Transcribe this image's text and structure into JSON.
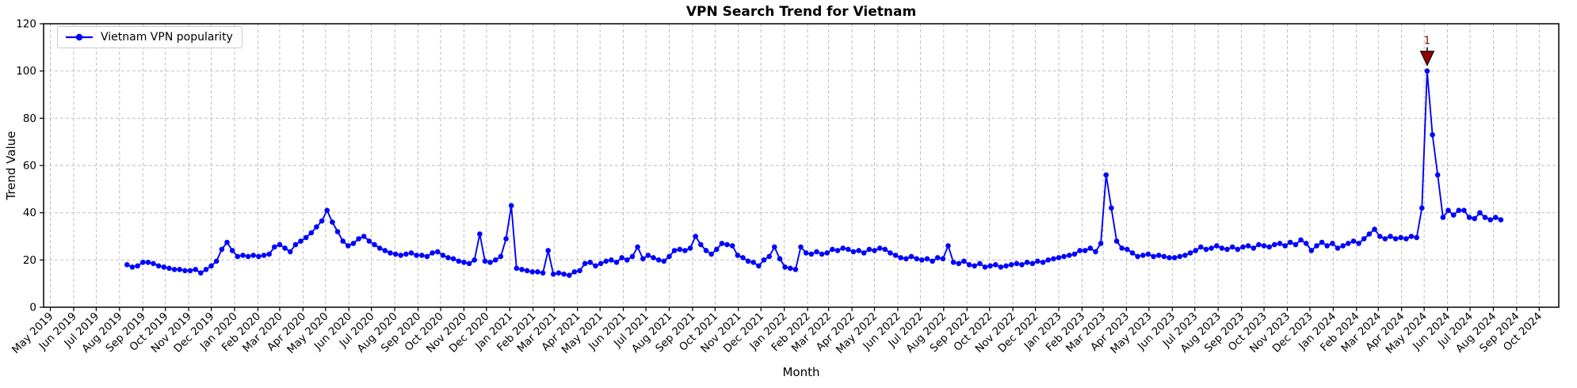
{
  "figure": {
    "background": "#ffffff",
    "font_color": "#000000"
  },
  "chart_data": {
    "type": "line",
    "title": "VPN Search Trend for Vietnam",
    "xlabel": "Month",
    "ylabel": "Trend Value",
    "ylim": [
      0,
      120
    ],
    "yticks": [
      0,
      20,
      40,
      60,
      80,
      100,
      120
    ],
    "grid": true,
    "grid_style": "dashed",
    "legend_position": "upper-left",
    "xlim_dates": [
      "2019-04-22",
      "2024-10-27"
    ],
    "x_tick_labels": [
      "May 2019",
      "Jun 2019",
      "Jul 2019",
      "Aug 2019",
      "Sep 2019",
      "Oct 2019",
      "Nov 2019",
      "Dec 2019",
      "Jan 2020",
      "Feb 2020",
      "Mar 2020",
      "Apr 2020",
      "May 2020",
      "Jun 2020",
      "Jul 2020",
      "Aug 2020",
      "Sep 2020",
      "Oct 2020",
      "Nov 2020",
      "Dec 2020",
      "Jan 2021",
      "Feb 2021",
      "Mar 2021",
      "Apr 2021",
      "May 2021",
      "Jun 2021",
      "Jul 2021",
      "Aug 2021",
      "Sep 2021",
      "Oct 2021",
      "Nov 2021",
      "Dec 2021",
      "Jan 2022",
      "Feb 2022",
      "Mar 2022",
      "Apr 2022",
      "May 2022",
      "Jun 2022",
      "Jul 2022",
      "Aug 2022",
      "Sep 2022",
      "Oct 2022",
      "Nov 2022",
      "Dec 2022",
      "Jan 2023",
      "Feb 2023",
      "Mar 2023",
      "Apr 2023",
      "May 2023",
      "Jun 2023",
      "Jul 2023",
      "Aug 2023",
      "Sep 2023",
      "Oct 2023",
      "Nov 2023",
      "Dec 2023",
      "Jan 2024",
      "Feb 2024",
      "Mar 2024",
      "Apr 2024",
      "May 2024",
      "Jun 2024",
      "Jul 2024",
      "Aug 2024",
      "Sep 2024",
      "Oct 2024"
    ],
    "series": [
      {
        "name": "Vietnam VPN popularity",
        "color": "#0000ff",
        "marker": "circle",
        "x_start": "2019-08-11",
        "x_step_days": 7,
        "values": [
          18,
          17,
          17.5,
          19,
          19,
          18.5,
          17.5,
          17,
          16.5,
          16,
          16,
          15.5,
          15.5,
          16,
          14.5,
          16,
          17.5,
          19.5,
          24.5,
          27.5,
          24,
          21.5,
          22,
          21.5,
          22,
          21.5,
          22,
          22.5,
          25.5,
          26.5,
          25,
          23.5,
          26.5,
          28,
          29.5,
          31.5,
          34,
          36.5,
          41,
          36,
          32,
          28,
          26,
          27,
          29,
          30,
          28,
          26.5,
          25,
          24,
          23,
          22.5,
          22,
          22.5,
          23,
          22,
          22,
          21.5,
          23,
          23.5,
          22,
          21,
          20.5,
          19.5,
          19,
          18.5,
          20,
          31,
          19.5,
          19,
          20,
          21.5,
          29,
          43,
          16.5,
          16,
          15.5,
          15,
          15,
          14.5,
          24,
          14,
          14.5,
          14,
          13.5,
          15,
          15.5,
          18.5,
          19,
          17.5,
          18.5,
          19.5,
          20,
          19,
          21,
          20,
          21.5,
          25.5,
          20.5,
          22,
          21,
          20,
          19.5,
          21.5,
          24,
          24.5,
          24,
          25,
          30,
          26.5,
          24,
          22.5,
          24.5,
          27,
          26.5,
          26,
          22,
          21,
          19.5,
          19,
          17.5,
          20,
          21.5,
          25.5,
          20.5,
          17,
          16.5,
          16,
          25.5,
          23,
          22.5,
          23.5,
          22.5,
          23,
          24.5,
          24,
          25,
          24.5,
          23.5,
          24,
          23,
          24.5,
          24,
          25,
          24.5,
          23,
          22,
          21,
          20.5,
          21.5,
          20.5,
          20,
          20.5,
          19.5,
          21,
          20.5,
          26,
          19,
          18.5,
          19.5,
          18,
          17.5,
          18.5,
          17,
          17.5,
          18,
          17,
          17.5,
          18,
          18.5,
          18,
          19,
          18.5,
          19.5,
          19,
          20,
          20.5,
          21,
          21.5,
          22,
          22.5,
          24,
          24,
          25,
          23.5,
          27,
          56,
          42,
          28,
          25,
          24.5,
          23,
          21.5,
          22,
          22.5,
          21.5,
          22,
          21.5,
          21,
          21,
          21.5,
          22,
          23,
          24,
          25.5,
          24.5,
          25,
          26,
          25,
          24.5,
          25.5,
          24.5,
          25.5,
          26,
          25,
          26.5,
          26,
          25.5,
          26.5,
          27,
          26,
          27.5,
          26.5,
          28.5,
          27,
          24,
          26,
          27.5,
          26,
          27,
          25,
          26,
          27,
          28,
          27,
          29,
          31,
          33,
          30,
          29,
          30,
          29,
          29.5,
          29,
          30,
          29.5,
          42,
          100,
          73,
          56,
          38,
          41,
          39,
          41,
          41,
          38,
          37.5,
          40,
          38,
          37,
          38,
          37
        ]
      }
    ],
    "annotation": {
      "label": "1",
      "at_index": 247,
      "value": 100,
      "marker": "triangle-down",
      "color": "#8b0000"
    }
  },
  "style": {
    "line_color": "#0000ff",
    "grid_color": "#b8b8b8",
    "spine_color": "#000000",
    "annotation_color": "#8b0000",
    "tick_font_size": 13.5,
    "x_tick_rotation_deg": 45
  }
}
